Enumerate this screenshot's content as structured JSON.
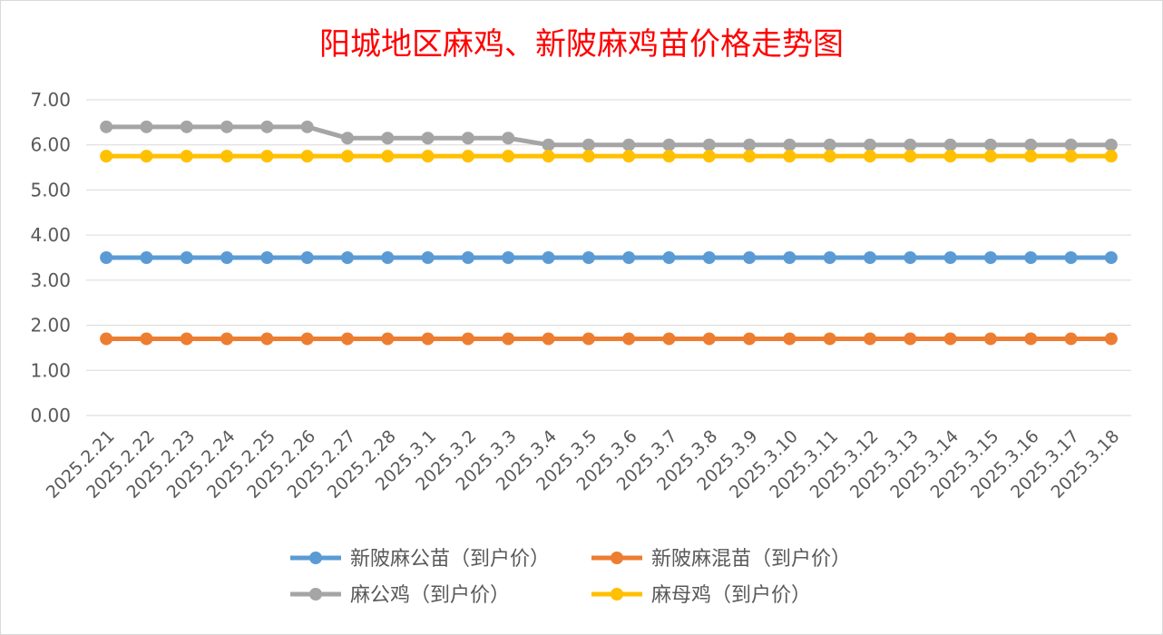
{
  "chart_data": {
    "type": "line",
    "title": "阳城地区麻鸡、新陂麻鸡苗价格走势图",
    "xlabel": "",
    "ylabel": "",
    "ylim": [
      0,
      7
    ],
    "yticks": [
      "0.00",
      "1.00",
      "2.00",
      "3.00",
      "4.00",
      "5.00",
      "6.00",
      "7.00"
    ],
    "grid": true,
    "legend_position": "bottom",
    "categories": [
      "2025.2.21",
      "2025.2.22",
      "2025.2.23",
      "2025.2.24",
      "2025.2.25",
      "2025.2.26",
      "2025.2.27",
      "2025.2.28",
      "2025.3.1",
      "2025.3.2",
      "2025.3.3",
      "2025.3.4",
      "2025.3.5",
      "2025.3.6",
      "2025.3.7",
      "2025.3.8",
      "2025.3.9",
      "2025.3.10",
      "2025.3.11",
      "2025.3.12",
      "2025.3.13",
      "2025.3.14",
      "2025.3.15",
      "2025.3.16",
      "2025.3.17",
      "2025.3.18"
    ],
    "series": [
      {
        "name": "新陂麻公苗（到户价）",
        "color": "#5b9bd5",
        "values": [
          3.5,
          3.5,
          3.5,
          3.5,
          3.5,
          3.5,
          3.5,
          3.5,
          3.5,
          3.5,
          3.5,
          3.5,
          3.5,
          3.5,
          3.5,
          3.5,
          3.5,
          3.5,
          3.5,
          3.5,
          3.5,
          3.5,
          3.5,
          3.5,
          3.5,
          3.5
        ]
      },
      {
        "name": "新陂麻混苗（到户价）",
        "color": "#ed7d31",
        "values": [
          1.7,
          1.7,
          1.7,
          1.7,
          1.7,
          1.7,
          1.7,
          1.7,
          1.7,
          1.7,
          1.7,
          1.7,
          1.7,
          1.7,
          1.7,
          1.7,
          1.7,
          1.7,
          1.7,
          1.7,
          1.7,
          1.7,
          1.7,
          1.7,
          1.7,
          1.7
        ]
      },
      {
        "name": "麻公鸡（到户价）",
        "color": "#a5a5a5",
        "values": [
          6.4,
          6.4,
          6.4,
          6.4,
          6.4,
          6.4,
          6.15,
          6.15,
          6.15,
          6.15,
          6.15,
          6.0,
          6.0,
          6.0,
          6.0,
          6.0,
          6.0,
          6.0,
          6.0,
          6.0,
          6.0,
          6.0,
          6.0,
          6.0,
          6.0,
          6.0
        ]
      },
      {
        "name": "麻母鸡（到户价）",
        "color": "#ffc000",
        "values": [
          5.75,
          5.75,
          5.75,
          5.75,
          5.75,
          5.75,
          5.75,
          5.75,
          5.75,
          5.75,
          5.75,
          5.75,
          5.75,
          5.75,
          5.75,
          5.75,
          5.75,
          5.75,
          5.75,
          5.75,
          5.75,
          5.75,
          5.75,
          5.75,
          5.75,
          5.75
        ]
      }
    ]
  }
}
